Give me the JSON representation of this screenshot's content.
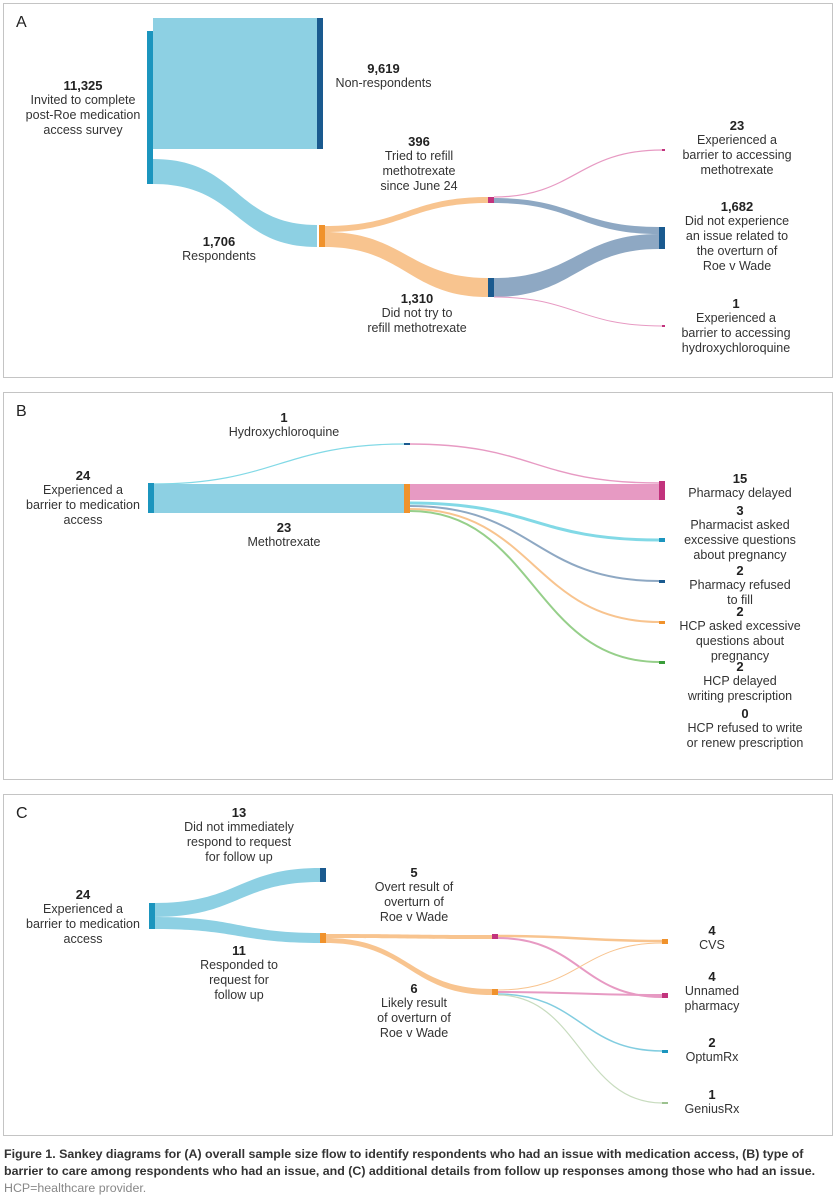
{
  "colors": {
    "blue_node": "#1b95be",
    "navy_node": "#1a5a8f",
    "orange_node": "#f0922c",
    "magenta_node": "#c2337d",
    "light_blue_link": "#8dd0e3",
    "orange_link": "#f8c48f",
    "steel_link": "#8ea8c3",
    "pink_link": "#e79ac3",
    "cyan_link": "#82d9e6",
    "green_link": "#96cf8a"
  },
  "panel_a": {
    "letter": "A",
    "invited": {
      "value": "11,325",
      "text": "Invited to complete\npost-Roe medication\naccess survey"
    },
    "non_respondents": {
      "value": "9,619",
      "text": "Non-respondents"
    },
    "respondents": {
      "value": "1,706",
      "text": "Respondents"
    },
    "tried_refill": {
      "value": "396",
      "text": "Tried to refill\nmethotrexate\nsince June 24"
    },
    "not_try_refill": {
      "value": "1,310",
      "text": "Did not try to\nrefill methotrexate"
    },
    "barrier_mtx": {
      "value": "23",
      "text": "Experienced a\nbarrier to accessing\nmethotrexate"
    },
    "no_issue": {
      "value": "1,682",
      "text": "Did not experience\nan issue related to\nthe overturn of\nRoe v Wade"
    },
    "barrier_hcq": {
      "value": "1",
      "text": "Experienced a\nbarrier to accessing\nhydroxychloroquine"
    }
  },
  "panel_b": {
    "letter": "B",
    "barrier_total": {
      "value": "24",
      "text": "Experienced a\nbarrier to medication\naccess"
    },
    "hcq": {
      "value": "1",
      "text": "Hydroxychloroquine"
    },
    "mtx": {
      "value": "23",
      "text": "Methotrexate"
    },
    "pharmacy_delayed": {
      "value": "15",
      "text": "Pharmacy delayed"
    },
    "pharmacist_asked": {
      "value": "3",
      "text": "Pharmacist asked\nexcessive questions\nabout pregnancy"
    },
    "pharmacy_refused": {
      "value": "2",
      "text": "Pharmacy refused\nto fill"
    },
    "hcp_asked": {
      "value": "2",
      "text": "HCP asked excessive\nquestions about\npregnancy"
    },
    "hcp_delayed": {
      "value": "2",
      "text": "HCP delayed\nwriting prescription"
    },
    "hcp_refused": {
      "value": "0",
      "text": "HCP refused to write\nor renew prescription"
    }
  },
  "panel_c": {
    "letter": "C",
    "barrier_total": {
      "value": "24",
      "text": "Experienced a\nbarrier to medication\naccess"
    },
    "no_response": {
      "value": "13",
      "text": "Did not immediately\nrespond to request\nfor follow up"
    },
    "responded": {
      "value": "11",
      "text": "Responded to\nrequest for\nfollow up"
    },
    "overt": {
      "value": "5",
      "text": "Overt result of\noverturn of\nRoe v Wade"
    },
    "likely": {
      "value": "6",
      "text": "Likely result\nof overturn of\nRoe v Wade"
    },
    "cvs": {
      "value": "4",
      "text": "CVS"
    },
    "unnamed": {
      "value": "4",
      "text": "Unnamed\npharmacy"
    },
    "optumrx": {
      "value": "2",
      "text": "OptumRx"
    },
    "geniusrx": {
      "value": "1",
      "text": "GeniusRx"
    }
  },
  "caption": {
    "bold": "Figure 1. Sankey diagrams for (A) overall sample size flow to identify respondents who had an issue with medication access, (B) type of barrier to care among respondents who had an issue, and (C) additional details from follow up responses among those who had  an issue.",
    "note": " HCP=healthcare provider."
  }
}
